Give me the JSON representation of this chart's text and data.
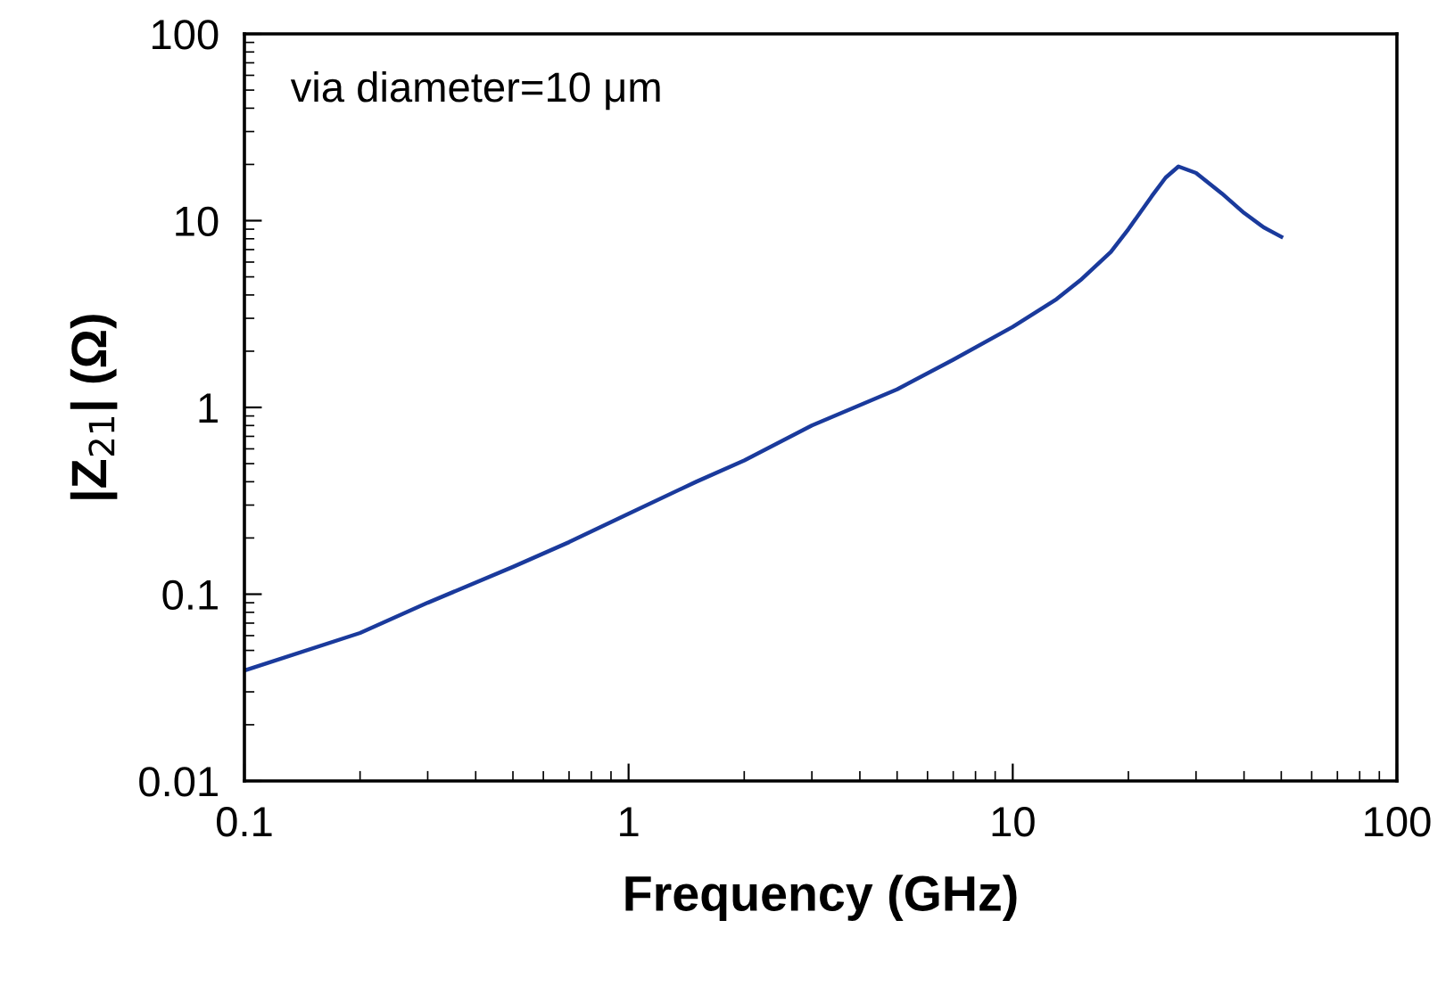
{
  "chart_data": {
    "type": "line",
    "xlabel": "Frequency (GHz)",
    "ylabel": "|Z$_{21}$| (Ω)",
    "log": "xy",
    "annotations": [
      "via diameter=10 μm"
    ],
    "x": [
      0.1,
      0.2,
      0.3,
      0.5,
      0.7,
      1,
      1.5,
      2,
      3,
      5,
      7,
      10,
      13,
      15,
      18,
      20,
      23,
      25,
      27,
      30,
      35,
      40,
      45,
      50
    ],
    "series": [
      {
        "color": "#1a3a9c",
        "values": [
          0.039,
          0.062,
          0.09,
          0.14,
          0.19,
          0.27,
          0.4,
          0.52,
          0.8,
          1.25,
          1.8,
          2.7,
          3.8,
          4.8,
          6.8,
          9,
          13.5,
          17,
          19.5,
          18,
          14,
          11,
          9.2,
          8.2
        ]
      }
    ],
    "xlim": [
      0.1,
      100
    ],
    "ylim": [
      0.01,
      100
    ],
    "xticks": [
      0.1,
      1,
      10,
      100
    ],
    "yticks": [
      0.01,
      0.1,
      1,
      10,
      100
    ],
    "grid": false,
    "legend": false,
    "marker": "none",
    "line_style": "solid"
  }
}
